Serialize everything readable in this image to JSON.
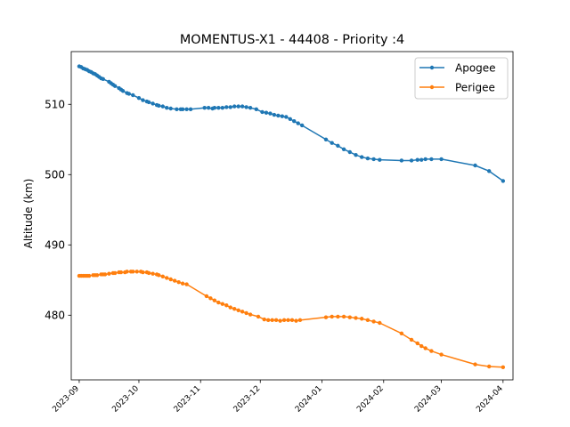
{
  "chart_data": {
    "type": "line",
    "title": "MOMENTUS-X1 - 44408 - Priority :4",
    "xlabel": "",
    "ylabel": "Altitude (km)",
    "xlim": [
      "2023-08-28",
      "2024-04-06"
    ],
    "ylim": [
      470.8,
      517.5
    ],
    "x_ticks": [
      "2023-09",
      "2023-10",
      "2023-11",
      "2023-12",
      "2024-01",
      "2024-02",
      "2024-03",
      "2024-04"
    ],
    "y_ticks": [
      480,
      490,
      500,
      510
    ],
    "grid": false,
    "legend_position": "top-right",
    "series": [
      {
        "name": "Apogee",
        "color": "#1f77b4",
        "points": [
          [
            "2023-09-01",
            515.4
          ],
          [
            "2023-09-02",
            515.3
          ],
          [
            "2023-09-03",
            515.1
          ],
          [
            "2023-09-04",
            515.0
          ],
          [
            "2023-09-05",
            514.9
          ],
          [
            "2023-09-06",
            514.7
          ],
          [
            "2023-09-07",
            514.6
          ],
          [
            "2023-09-08",
            514.4
          ],
          [
            "2023-09-09",
            514.3
          ],
          [
            "2023-09-10",
            514.1
          ],
          [
            "2023-09-11",
            513.9
          ],
          [
            "2023-09-12",
            513.7
          ],
          [
            "2023-09-13",
            513.6
          ],
          [
            "2023-09-16",
            513.2
          ],
          [
            "2023-09-17",
            513.0
          ],
          [
            "2023-09-18",
            512.8
          ],
          [
            "2023-09-19",
            512.6
          ],
          [
            "2023-09-21",
            512.3
          ],
          [
            "2023-09-22",
            512.1
          ],
          [
            "2023-09-23",
            511.9
          ],
          [
            "2023-09-25",
            511.6
          ],
          [
            "2023-09-26",
            511.5
          ],
          [
            "2023-09-28",
            511.3
          ],
          [
            "2023-10-01",
            510.9
          ],
          [
            "2023-10-03",
            510.6
          ],
          [
            "2023-10-05",
            510.4
          ],
          [
            "2023-10-06",
            510.3
          ],
          [
            "2023-10-08",
            510.1
          ],
          [
            "2023-10-10",
            509.9
          ],
          [
            "2023-10-11",
            509.8
          ],
          [
            "2023-10-13",
            509.7
          ],
          [
            "2023-10-15",
            509.5
          ],
          [
            "2023-10-17",
            509.4
          ],
          [
            "2023-10-20",
            509.3
          ],
          [
            "2023-10-22",
            509.3
          ],
          [
            "2023-10-23",
            509.3
          ],
          [
            "2023-10-25",
            509.3
          ],
          [
            "2023-10-27",
            509.3
          ],
          [
            "2023-11-03",
            509.5
          ],
          [
            "2023-11-05",
            509.5
          ],
          [
            "2023-11-07",
            509.4
          ],
          [
            "2023-11-08",
            509.5
          ],
          [
            "2023-11-10",
            509.5
          ],
          [
            "2023-11-12",
            509.5
          ],
          [
            "2023-11-14",
            509.6
          ],
          [
            "2023-11-16",
            509.6
          ],
          [
            "2023-11-18",
            509.7
          ],
          [
            "2023-11-20",
            509.7
          ],
          [
            "2023-11-22",
            509.7
          ],
          [
            "2023-11-24",
            509.6
          ],
          [
            "2023-11-26",
            509.5
          ],
          [
            "2023-11-29",
            509.3
          ],
          [
            "2023-12-02",
            508.9
          ],
          [
            "2023-12-04",
            508.8
          ],
          [
            "2023-12-06",
            508.7
          ],
          [
            "2023-12-08",
            508.5
          ],
          [
            "2023-12-10",
            508.4
          ],
          [
            "2023-12-12",
            508.3
          ],
          [
            "2023-12-14",
            508.2
          ],
          [
            "2023-12-16",
            507.9
          ],
          [
            "2023-12-18",
            507.6
          ],
          [
            "2023-12-20",
            507.3
          ],
          [
            "2023-12-22",
            507.0
          ],
          [
            "2024-01-03",
            505.0
          ],
          [
            "2024-01-06",
            504.5
          ],
          [
            "2024-01-09",
            504.1
          ],
          [
            "2024-01-12",
            503.6
          ],
          [
            "2024-01-15",
            503.2
          ],
          [
            "2024-01-18",
            502.8
          ],
          [
            "2024-01-21",
            502.5
          ],
          [
            "2024-01-24",
            502.3
          ],
          [
            "2024-01-27",
            502.2
          ],
          [
            "2024-01-30",
            502.1
          ],
          [
            "2024-02-10",
            502.0
          ],
          [
            "2024-02-15",
            502.0
          ],
          [
            "2024-02-18",
            502.1
          ],
          [
            "2024-02-20",
            502.1
          ],
          [
            "2024-02-22",
            502.2
          ],
          [
            "2024-02-25",
            502.2
          ],
          [
            "2024-03-01",
            502.2
          ],
          [
            "2024-03-18",
            501.3
          ],
          [
            "2024-03-25",
            500.5
          ],
          [
            "2024-04-01",
            499.1
          ]
        ]
      },
      {
        "name": "Perigee",
        "color": "#ff7f0e",
        "points": [
          [
            "2023-09-01",
            485.6
          ],
          [
            "2023-09-02",
            485.6
          ],
          [
            "2023-09-03",
            485.6
          ],
          [
            "2023-09-04",
            485.6
          ],
          [
            "2023-09-05",
            485.6
          ],
          [
            "2023-09-06",
            485.6
          ],
          [
            "2023-09-08",
            485.7
          ],
          [
            "2023-09-09",
            485.7
          ],
          [
            "2023-09-10",
            485.7
          ],
          [
            "2023-09-12",
            485.8
          ],
          [
            "2023-09-13",
            485.8
          ],
          [
            "2023-09-14",
            485.8
          ],
          [
            "2023-09-16",
            485.9
          ],
          [
            "2023-09-18",
            486.0
          ],
          [
            "2023-09-19",
            486.0
          ],
          [
            "2023-09-21",
            486.1
          ],
          [
            "2023-09-22",
            486.1
          ],
          [
            "2023-09-24",
            486.1
          ],
          [
            "2023-09-25",
            486.2
          ],
          [
            "2023-09-27",
            486.2
          ],
          [
            "2023-09-28",
            486.2
          ],
          [
            "2023-09-30",
            486.2
          ],
          [
            "2023-10-02",
            486.2
          ],
          [
            "2023-10-03",
            486.1
          ],
          [
            "2023-10-05",
            486.1
          ],
          [
            "2023-10-06",
            486.0
          ],
          [
            "2023-10-08",
            485.9
          ],
          [
            "2023-10-10",
            485.8
          ],
          [
            "2023-10-11",
            485.7
          ],
          [
            "2023-10-13",
            485.5
          ],
          [
            "2023-10-15",
            485.3
          ],
          [
            "2023-10-17",
            485.1
          ],
          [
            "2023-10-19",
            484.9
          ],
          [
            "2023-10-21",
            484.7
          ],
          [
            "2023-10-23",
            484.5
          ],
          [
            "2023-10-25",
            484.4
          ],
          [
            "2023-11-04",
            482.7
          ],
          [
            "2023-11-06",
            482.4
          ],
          [
            "2023-11-08",
            482.1
          ],
          [
            "2023-11-10",
            481.8
          ],
          [
            "2023-11-12",
            481.6
          ],
          [
            "2023-11-14",
            481.4
          ],
          [
            "2023-11-16",
            481.1
          ],
          [
            "2023-11-18",
            480.9
          ],
          [
            "2023-11-20",
            480.7
          ],
          [
            "2023-11-22",
            480.5
          ],
          [
            "2023-11-24",
            480.3
          ],
          [
            "2023-11-26",
            480.1
          ],
          [
            "2023-11-30",
            479.8
          ],
          [
            "2023-12-03",
            479.4
          ],
          [
            "2023-12-05",
            479.3
          ],
          [
            "2023-12-07",
            479.3
          ],
          [
            "2023-12-09",
            479.3
          ],
          [
            "2023-12-11",
            479.2
          ],
          [
            "2023-12-13",
            479.3
          ],
          [
            "2023-12-15",
            479.3
          ],
          [
            "2023-12-17",
            479.3
          ],
          [
            "2023-12-19",
            479.2
          ],
          [
            "2023-12-21",
            479.3
          ],
          [
            "2024-01-03",
            479.7
          ],
          [
            "2024-01-06",
            479.8
          ],
          [
            "2024-01-09",
            479.8
          ],
          [
            "2024-01-12",
            479.8
          ],
          [
            "2024-01-15",
            479.7
          ],
          [
            "2024-01-18",
            479.6
          ],
          [
            "2024-01-21",
            479.5
          ],
          [
            "2024-01-24",
            479.3
          ],
          [
            "2024-01-27",
            479.1
          ],
          [
            "2024-01-30",
            478.9
          ],
          [
            "2024-02-10",
            477.4
          ],
          [
            "2024-02-15",
            476.5
          ],
          [
            "2024-02-18",
            476.0
          ],
          [
            "2024-02-20",
            475.6
          ],
          [
            "2024-02-22",
            475.3
          ],
          [
            "2024-02-25",
            474.9
          ],
          [
            "2024-03-01",
            474.4
          ],
          [
            "2024-03-18",
            473.0
          ],
          [
            "2024-03-25",
            472.7
          ],
          [
            "2024-04-01",
            472.6
          ]
        ]
      }
    ]
  }
}
